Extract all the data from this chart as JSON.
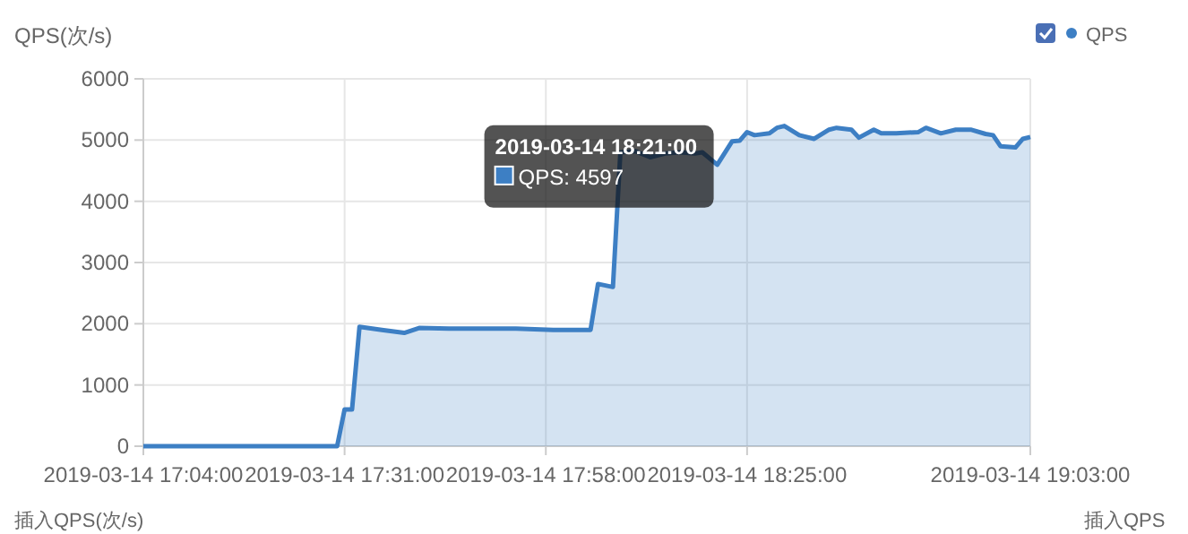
{
  "chart_data": {
    "type": "area",
    "ylabel": "QPS(次/s)",
    "legend": "top right",
    "grid": true,
    "marker": "none",
    "xlim": [
      "2019-03-14T17:04",
      "2019-03-14T19:03"
    ],
    "xticks": [
      {
        "value": "2019-03-14T17:04",
        "label": "2019-03-14 17:04:00"
      },
      {
        "value": "2019-03-14T17:31",
        "label": "2019-03-14 17:31:00"
      },
      {
        "value": "2019-03-14T17:58",
        "label": "2019-03-14 17:58:00"
      },
      {
        "value": "2019-03-14T18:25",
        "label": "2019-03-14 18:25:00"
      },
      {
        "value": "2019-03-14T19:03",
        "label": "2019-03-14 19:03:00"
      }
    ],
    "ylim": [
      0,
      6000
    ],
    "yticks": [
      0,
      1000,
      2000,
      3000,
      4000,
      5000,
      6000
    ],
    "x": [
      "2019-03-14T17:04",
      "2019-03-14T17:30",
      "2019-03-14T17:31",
      "2019-03-14T17:32",
      "2019-03-14T17:33",
      "2019-03-14T17:36",
      "2019-03-14T17:39",
      "2019-03-14T17:41",
      "2019-03-14T17:45",
      "2019-03-14T17:54",
      "2019-03-14T17:59",
      "2019-03-14T18:04",
      "2019-03-14T18:05",
      "2019-03-14T18:07",
      "2019-03-14T18:08",
      "2019-03-14T18:10",
      "2019-03-14T18:12",
      "2019-03-14T18:14",
      "2019-03-14T18:16",
      "2019-03-14T18:18",
      "2019-03-14T18:19",
      "2019-03-14T18:21",
      "2019-03-14T18:23",
      "2019-03-14T18:24",
      "2019-03-14T18:25",
      "2019-03-14T18:26",
      "2019-03-14T18:28",
      "2019-03-14T18:29",
      "2019-03-14T18:30",
      "2019-03-14T18:32",
      "2019-03-14T18:34",
      "2019-03-14T18:36",
      "2019-03-14T18:37",
      "2019-03-14T18:39",
      "2019-03-14T18:40",
      "2019-03-14T18:42",
      "2019-03-14T18:43",
      "2019-03-14T18:45",
      "2019-03-14T18:48",
      "2019-03-14T18:49",
      "2019-03-14T18:51",
      "2019-03-14T18:53",
      "2019-03-14T18:55",
      "2019-03-14T18:57",
      "2019-03-14T18:58",
      "2019-03-14T18:59",
      "2019-03-14T19:01",
      "2019-03-14T19:02",
      "2019-03-14T19:03"
    ],
    "series": [
      {
        "name": "QPS",
        "color": "#3d7fc4",
        "values": [
          0,
          0,
          600,
          600,
          1950,
          1900,
          1850,
          1930,
          1920,
          1920,
          1900,
          1900,
          2650,
          2600,
          4800,
          4820,
          4720,
          4780,
          4800,
          4780,
          4800,
          4597,
          4980,
          4990,
          5130,
          5080,
          5110,
          5200,
          5230,
          5080,
          5020,
          5170,
          5200,
          5170,
          5040,
          5170,
          5110,
          5110,
          5130,
          5200,
          5110,
          5170,
          5170,
          5100,
          5080,
          4900,
          4880,
          5020,
          5050
        ]
      }
    ],
    "annotations": [
      {
        "text": "2019-03-14 18:21:00",
        "x": "2019-03-14T18:21",
        "y": 4597
      },
      "QPS: 4597",
      "插入QPS(次/s)",
      "插入QPS"
    ]
  }
}
